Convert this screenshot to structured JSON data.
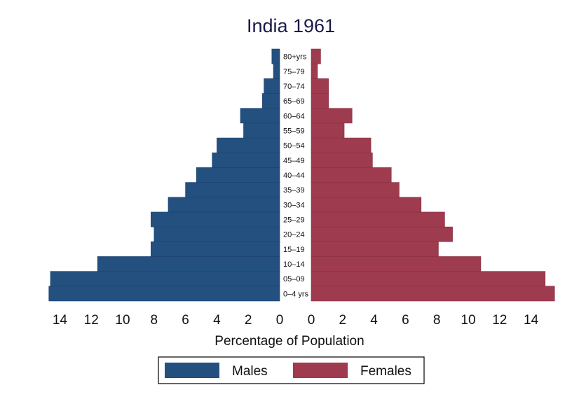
{
  "chart_data": {
    "type": "bar",
    "subtype": "population-pyramid",
    "title": "India 1961",
    "xlabel": "Percentage of Population",
    "categories": [
      "0–4 yrs",
      "05–09",
      "10–14",
      "15–19",
      "20–24",
      "25–29",
      "30–34",
      "35–39",
      "40–44",
      "45–49",
      "50–54",
      "55–59",
      "60–64",
      "65–69",
      "70–74",
      "75–79",
      "80+yrs"
    ],
    "series": [
      {
        "name": "Males",
        "color": "#23507f",
        "values": [
          14.7,
          14.6,
          11.6,
          8.2,
          8.0,
          8.2,
          7.1,
          6.0,
          5.3,
          4.3,
          4.0,
          2.3,
          2.5,
          1.1,
          1.0,
          0.4,
          0.5
        ]
      },
      {
        "name": "Females",
        "color": "#9e3b4f",
        "values": [
          15.5,
          14.9,
          10.8,
          8.1,
          9.0,
          8.5,
          7.0,
          5.6,
          5.1,
          3.9,
          3.8,
          2.1,
          2.6,
          1.1,
          1.1,
          0.4,
          0.6
        ]
      }
    ],
    "xticks": [
      0,
      2,
      4,
      6,
      8,
      10,
      12,
      14
    ],
    "xlim": [
      0,
      15.5
    ],
    "legend": {
      "placement": "bottom",
      "entries": [
        "Males",
        "Females"
      ]
    },
    "grid": false
  }
}
